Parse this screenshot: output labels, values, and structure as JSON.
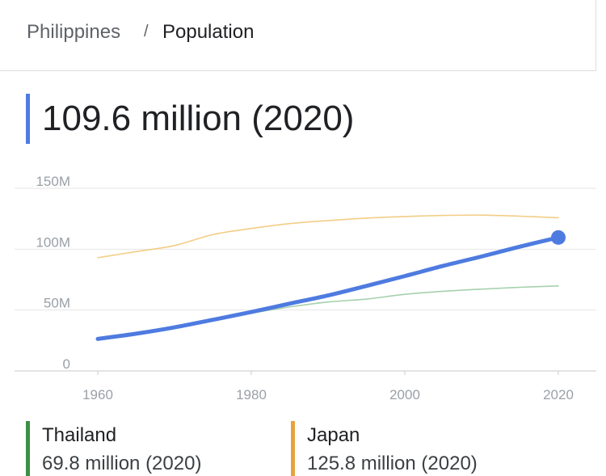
{
  "breadcrumb": {
    "parent": "Philippines",
    "separator": "/",
    "current": "Population"
  },
  "headline": {
    "value": "109.6 million (2020)",
    "accent_color": "#4e7be0"
  },
  "legend": [
    {
      "name": "Thailand",
      "value": "69.8 million (2020)",
      "color": "#3d8f46"
    },
    {
      "name": "Japan",
      "value": "125.8 million (2020)",
      "color": "#e8a23c"
    }
  ],
  "chart_data": {
    "type": "line",
    "x": [
      1960,
      1965,
      1970,
      1975,
      1980,
      1985,
      1990,
      1995,
      2000,
      2005,
      2010,
      2015,
      2020
    ],
    "series": [
      {
        "name": "Philippines",
        "color": "#4e7be0",
        "values": [
          26.3,
          30.6,
          35.8,
          42.0,
          48.4,
          55.3,
          62.0,
          69.8,
          77.9,
          86.3,
          94.0,
          102.1,
          109.6
        ]
      },
      {
        "name": "Thailand",
        "color": "#a6d1ad",
        "values": [
          26.2,
          31.0,
          36.0,
          42.0,
          47.4,
          52.6,
          56.6,
          59.0,
          62.9,
          65.4,
          67.2,
          68.7,
          69.8
        ]
      },
      {
        "name": "Japan",
        "color": "#f3cd86",
        "values": [
          93.0,
          98.0,
          103.0,
          112.0,
          117.0,
          121.0,
          123.5,
          125.5,
          126.8,
          127.7,
          128.0,
          127.1,
          125.8
        ]
      }
    ],
    "xticks": [
      "1960",
      "1980",
      "2000",
      "2020"
    ],
    "yticks": [
      "0",
      "50M",
      "100M",
      "150M"
    ],
    "xlim": [
      1960,
      2020
    ],
    "ylim": [
      0,
      150
    ],
    "grid": true
  }
}
